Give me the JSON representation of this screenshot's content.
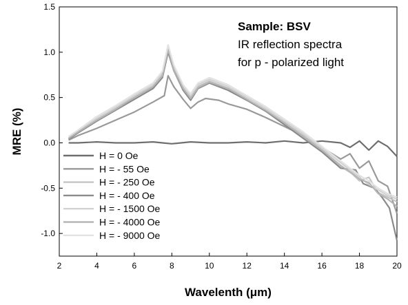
{
  "chart_data": {
    "type": "line",
    "xlabel": "Wavelenth (μm)",
    "ylabel": "MRE (%)",
    "xlim": [
      2,
      20
    ],
    "ylim": [
      -1.25,
      1.5
    ],
    "x_ticks": [
      "2",
      "4",
      "6",
      "8",
      "10",
      "12",
      "14",
      "16",
      "18",
      "20"
    ],
    "y_ticks": [
      "1.5",
      "1.0",
      "0.5",
      "0.0",
      "-0.5",
      "-1.0"
    ],
    "annotation": {
      "line1": "Sample:  BSV",
      "line2": "IR reflection spectra",
      "line3": "for p - polarized light"
    },
    "legend_position": "bottom-left",
    "grid": false,
    "series": [
      {
        "name": "H = 0 Oe",
        "color": "#6e6e6e",
        "x": [
          2.5,
          3,
          4,
          5,
          6,
          7,
          7.5,
          8,
          9,
          10,
          11,
          12,
          13,
          14,
          15,
          16,
          17,
          17.5,
          18,
          18.5,
          19,
          19.5,
          20
        ],
        "y": [
          0.0,
          0.0,
          0.01,
          0.0,
          0.0,
          0.01,
          0.0,
          -0.01,
          0.01,
          0.0,
          0.0,
          0.01,
          0.0,
          0.02,
          0.0,
          0.02,
          0.0,
          -0.05,
          0.02,
          -0.08,
          0.02,
          -0.04,
          -0.15
        ]
      },
      {
        "name": "H = - 55 Oe",
        "color": "#999999",
        "x": [
          2.5,
          3,
          4,
          5,
          6,
          7,
          7.6,
          7.8,
          8.1,
          8.6,
          9.0,
          9.4,
          9.8,
          10.5,
          11,
          12,
          13,
          14,
          15,
          16,
          17,
          17.5,
          18,
          18.5,
          19,
          19.5,
          20
        ],
        "y": [
          0.03,
          0.08,
          0.16,
          0.25,
          0.34,
          0.45,
          0.52,
          0.74,
          0.62,
          0.48,
          0.38,
          0.45,
          0.49,
          0.47,
          0.43,
          0.37,
          0.28,
          0.18,
          0.08,
          -0.05,
          -0.18,
          -0.12,
          -0.28,
          -0.2,
          -0.42,
          -0.48,
          -0.78
        ]
      },
      {
        "name": "H = - 250 Oe",
        "color": "#c4c4c4",
        "x": [
          2.5,
          3,
          4,
          5,
          6,
          7,
          7.5,
          7.8,
          8.1,
          8.6,
          9.0,
          9.4,
          10,
          11,
          12,
          13,
          14,
          15,
          16,
          17,
          17.6,
          18,
          18.5,
          19,
          19.5,
          20
        ],
        "y": [
          0.05,
          0.12,
          0.26,
          0.38,
          0.5,
          0.62,
          0.75,
          1.05,
          0.82,
          0.6,
          0.5,
          0.62,
          0.68,
          0.6,
          0.48,
          0.35,
          0.22,
          0.08,
          -0.08,
          -0.26,
          -0.34,
          -0.42,
          -0.38,
          -0.55,
          -0.6,
          -0.65
        ]
      },
      {
        "name": "H = - 400 Oe",
        "color": "#8a8a8a",
        "x": [
          2.5,
          3,
          4,
          5,
          6,
          7,
          7.5,
          7.8,
          8.1,
          8.6,
          9.0,
          9.4,
          10,
          11,
          12,
          13,
          14,
          15,
          16,
          17,
          17.8,
          18.2,
          18.8,
          19.2,
          19.6,
          20
        ],
        "y": [
          0.04,
          0.11,
          0.24,
          0.36,
          0.48,
          0.6,
          0.72,
          1.0,
          0.8,
          0.58,
          0.47,
          0.6,
          0.66,
          0.58,
          0.47,
          0.35,
          0.2,
          0.05,
          -0.1,
          -0.28,
          -0.3,
          -0.45,
          -0.5,
          -0.6,
          -0.72,
          -1.08
        ]
      },
      {
        "name": "H = - 1500 Oe",
        "color": "#d2d2d2",
        "x": [
          2.5,
          3,
          4,
          5,
          6,
          7,
          7.5,
          7.8,
          8.1,
          8.6,
          9.0,
          9.4,
          10,
          11,
          12,
          13,
          14,
          15,
          16,
          17,
          17.5,
          18,
          18.5,
          19,
          19.5,
          20
        ],
        "y": [
          0.06,
          0.13,
          0.27,
          0.39,
          0.52,
          0.64,
          0.77,
          1.07,
          0.84,
          0.62,
          0.52,
          0.64,
          0.7,
          0.62,
          0.5,
          0.38,
          0.24,
          0.1,
          -0.06,
          -0.22,
          -0.3,
          -0.38,
          -0.46,
          -0.52,
          -0.58,
          -0.62
        ]
      },
      {
        "name": "H = - 4000 Oe",
        "color": "#b5b5b5",
        "x": [
          2.5,
          3,
          4,
          5,
          6,
          7,
          7.5,
          7.8,
          8.1,
          8.6,
          9.0,
          9.4,
          10,
          11,
          12,
          13,
          14,
          15,
          16,
          17,
          17.5,
          18,
          18.5,
          19,
          19.5,
          20
        ],
        "y": [
          0.05,
          0.12,
          0.25,
          0.37,
          0.5,
          0.62,
          0.74,
          1.03,
          0.81,
          0.6,
          0.49,
          0.61,
          0.67,
          0.6,
          0.48,
          0.36,
          0.22,
          0.07,
          -0.08,
          -0.25,
          -0.32,
          -0.4,
          -0.44,
          -0.56,
          -0.62,
          -0.7
        ]
      },
      {
        "name": "H = - 9000 Oe",
        "color": "#e2e2e2",
        "x": [
          2.5,
          3,
          4,
          5,
          6,
          7,
          7.5,
          7.8,
          8.1,
          8.6,
          9.0,
          9.4,
          10,
          11,
          12,
          13,
          14,
          15,
          16,
          17,
          17.5,
          18,
          18.5,
          19,
          19.5,
          20
        ],
        "y": [
          0.07,
          0.14,
          0.29,
          0.41,
          0.54,
          0.66,
          0.79,
          1.08,
          0.86,
          0.64,
          0.54,
          0.66,
          0.72,
          0.64,
          0.52,
          0.4,
          0.26,
          0.12,
          -0.04,
          -0.2,
          -0.28,
          -0.36,
          -0.42,
          -0.5,
          -0.56,
          -0.6
        ]
      }
    ]
  }
}
